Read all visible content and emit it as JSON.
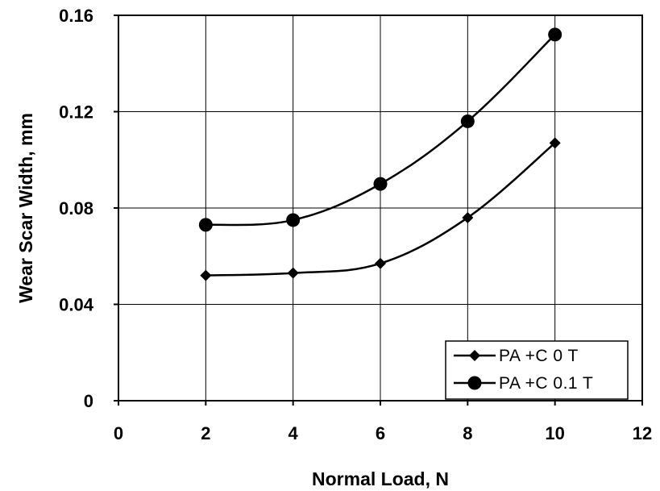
{
  "chart_data": {
    "type": "line",
    "xlabel": "Normal Load, N",
    "ylabel": "Wear Scar Width, mm",
    "xlim": [
      0,
      12
    ],
    "ylim": [
      0,
      0.16
    ],
    "x_ticks": [
      "0",
      "2",
      "4",
      "6",
      "8",
      "10",
      "12"
    ],
    "y_ticks": [
      "0",
      "0.04",
      "0.08",
      "0.12",
      "0.16"
    ],
    "grid": true,
    "legend_position": "bottom-right",
    "smooth": true,
    "series": [
      {
        "name": "PA +C 0 T",
        "marker": "diamond",
        "color": "#000000",
        "x": [
          2,
          4,
          6,
          8,
          10
        ],
        "y": [
          0.052,
          0.053,
          0.057,
          0.076,
          0.107
        ]
      },
      {
        "name": "PA +C 0.1 T",
        "marker": "circle",
        "color": "#000000",
        "x": [
          2,
          4,
          6,
          8,
          10
        ],
        "y": [
          0.073,
          0.075,
          0.09,
          0.116,
          0.152
        ]
      }
    ]
  }
}
